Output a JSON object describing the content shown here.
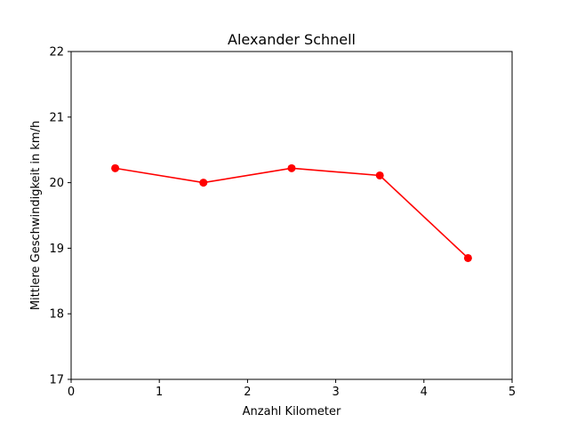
{
  "chart_data": {
    "type": "line",
    "title": "Alexander Schnell",
    "xlabel": "Anzahl Kilometer",
    "ylabel": "Mittlere Geschwindigkeit in km/h",
    "xlim": [
      0,
      5
    ],
    "ylim": [
      17,
      22
    ],
    "xticks": [
      "0",
      "1",
      "2",
      "3",
      "4",
      "5"
    ],
    "yticks": [
      "17",
      "18",
      "19",
      "20",
      "21",
      "22"
    ],
    "grid": false,
    "series": [
      {
        "color": "#ff0000",
        "x": [
          0.5,
          1.5,
          2.5,
          3.5,
          4.5
        ],
        "y": [
          20.22,
          20.0,
          20.22,
          20.11,
          18.85
        ]
      }
    ]
  }
}
